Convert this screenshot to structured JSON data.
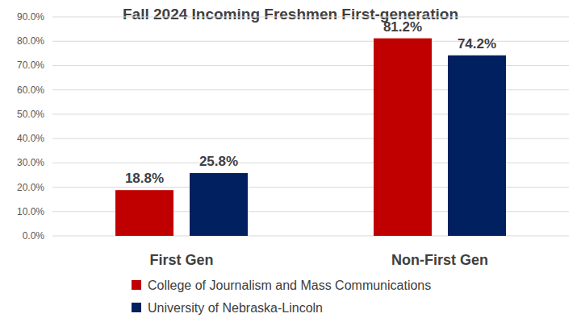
{
  "chart_data": {
    "type": "bar",
    "title": "Fall 2024 Incoming Freshmen First-generation",
    "categories": [
      "First Gen",
      "Non-First Gen"
    ],
    "series": [
      {
        "name": "College of Journalism and Mass Communications",
        "color": "#c00000",
        "values": [
          18.8,
          81.2
        ],
        "value_labels": [
          "18.8%",
          "81.2%"
        ]
      },
      {
        "name": "University of Nebraska-Lincoln",
        "color": "#002060",
        "values": [
          25.8,
          74.2
        ],
        "value_labels": [
          "25.8%",
          "74.2%"
        ]
      }
    ],
    "ylim": [
      0,
      90
    ],
    "yticks": [
      {
        "value": 0,
        "label": "0.0%"
      },
      {
        "value": 10,
        "label": "10.0%"
      },
      {
        "value": 20,
        "label": "20.0%"
      },
      {
        "value": 30,
        "label": "30.0%"
      },
      {
        "value": 40,
        "label": "40.0%"
      },
      {
        "value": 50,
        "label": "50.0%"
      },
      {
        "value": 60,
        "label": "60.0%"
      },
      {
        "value": 70,
        "label": "70.0%"
      },
      {
        "value": 80,
        "label": "80.0%"
      },
      {
        "value": 90,
        "label": "90.0%"
      }
    ],
    "grid": true,
    "data_labels": true,
    "legend": "bottom"
  }
}
